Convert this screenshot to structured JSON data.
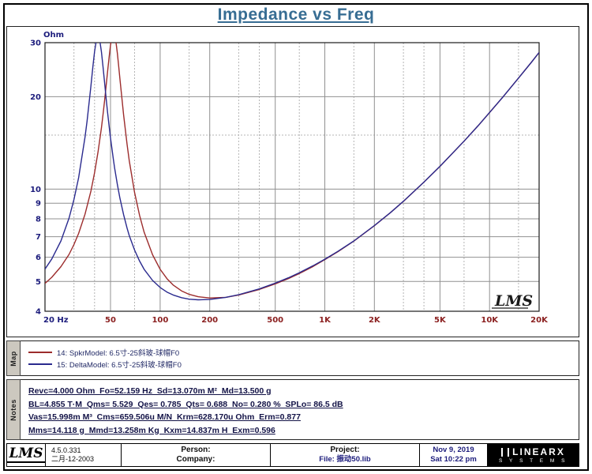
{
  "title": "Impedance vs Freq",
  "chart_data": {
    "type": "line",
    "title": "Impedance vs Freq",
    "watermark": "LMS",
    "x_axis": {
      "label": "Hz",
      "scale": "log",
      "min": 20,
      "max": 20000,
      "major_ticks": [
        {
          "value": 20,
          "label": "20 Hz"
        },
        {
          "value": 50,
          "label": "50"
        },
        {
          "value": 100,
          "label": "100"
        },
        {
          "value": 200,
          "label": "200"
        },
        {
          "value": 500,
          "label": "500"
        },
        {
          "value": 1000,
          "label": "1K"
        },
        {
          "value": 2000,
          "label": "2K"
        },
        {
          "value": 5000,
          "label": "5K"
        },
        {
          "value": 10000,
          "label": "10K"
        },
        {
          "value": 20000,
          "label": "20K"
        }
      ],
      "minor_gridlines": [
        30,
        40,
        70,
        150,
        300,
        400,
        700,
        1500,
        3000,
        4000,
        7000,
        15000
      ]
    },
    "y_axis": {
      "label": "Ohm",
      "scale": "log",
      "min": 4,
      "max": 30,
      "major_ticks": [
        {
          "value": 30,
          "label": "30"
        },
        {
          "value": 20,
          "label": "20"
        },
        {
          "value": 10,
          "label": "10"
        },
        {
          "value": 9,
          "label": "9"
        },
        {
          "value": 8,
          "label": "8"
        },
        {
          "value": 7,
          "label": "7"
        },
        {
          "value": 6,
          "label": "6"
        },
        {
          "value": 5,
          "label": "5"
        },
        {
          "value": 4,
          "label": "4"
        }
      ],
      "minor_gridlines": [
        15
      ]
    },
    "series": [
      {
        "name": "14: SpkrModel: 6.5寸-25斜玻-球帽F0",
        "color": "#9c2c2c",
        "points": [
          [
            20,
            4.93
          ],
          [
            22,
            5.16
          ],
          [
            25,
            5.59
          ],
          [
            28,
            6.13
          ],
          [
            30,
            6.6
          ],
          [
            32,
            7.17
          ],
          [
            35,
            8.28
          ],
          [
            38,
            9.86
          ],
          [
            40,
            11.31
          ],
          [
            42,
            13.22
          ],
          [
            44,
            15.83
          ],
          [
            45,
            17.47
          ],
          [
            46,
            19.41
          ],
          [
            47,
            21.64
          ],
          [
            48,
            24.17
          ],
          [
            49,
            26.86
          ],
          [
            50,
            29.44
          ],
          [
            51,
            31.4
          ],
          [
            52,
            32.3
          ],
          [
            53,
            31.7
          ],
          [
            54,
            30.0
          ],
          [
            55,
            27.7
          ],
          [
            56,
            25.23
          ],
          [
            57,
            22.9
          ],
          [
            60,
            17.44
          ],
          [
            63,
            13.98
          ],
          [
            65,
            12.35
          ],
          [
            70,
            9.75
          ],
          [
            75,
            8.22
          ],
          [
            80,
            7.24
          ],
          [
            90,
            6.11
          ],
          [
            100,
            5.48
          ],
          [
            110,
            5.11
          ],
          [
            120,
            4.87
          ],
          [
            135,
            4.66
          ],
          [
            150,
            4.54
          ],
          [
            170,
            4.46
          ],
          [
            200,
            4.42
          ],
          [
            250,
            4.44
          ],
          [
            300,
            4.52
          ],
          [
            400,
            4.71
          ],
          [
            500,
            4.91
          ],
          [
            600,
            5.11
          ],
          [
            700,
            5.31
          ],
          [
            850,
            5.6
          ],
          [
            1000,
            5.89
          ],
          [
            1200,
            6.25
          ],
          [
            1500,
            6.77
          ],
          [
            2000,
            7.6
          ],
          [
            2500,
            8.38
          ],
          [
            3000,
            9.12
          ],
          [
            4000,
            10.54
          ],
          [
            5000,
            11.86
          ],
          [
            7000,
            14.33
          ],
          [
            8500,
            16.06
          ],
          [
            10000,
            17.76
          ],
          [
            12000,
            19.9
          ],
          [
            15000,
            23.0
          ],
          [
            18000,
            25.95
          ],
          [
            20000,
            27.87
          ]
        ]
      },
      {
        "name": "15: DeltaModel: 6.5寸-25斜玻-球帽F0",
        "color": "#2a2a8e",
        "points": [
          [
            20,
            5.49
          ],
          [
            22,
            5.92
          ],
          [
            25,
            6.78
          ],
          [
            28,
            8.05
          ],
          [
            30,
            9.25
          ],
          [
            32,
            10.89
          ],
          [
            35,
            14.77
          ],
          [
            36,
            16.65
          ],
          [
            37,
            18.94
          ],
          [
            38,
            21.7
          ],
          [
            39,
            24.82
          ],
          [
            40,
            28.06
          ],
          [
            41,
            30.6
          ],
          [
            42,
            31.6
          ],
          [
            43,
            30.5
          ],
          [
            44,
            28.0
          ],
          [
            45,
            25.05
          ],
          [
            46,
            22.24
          ],
          [
            47,
            19.8
          ],
          [
            48,
            17.77
          ],
          [
            49,
            16.07
          ],
          [
            50,
            14.67
          ],
          [
            52,
            12.52
          ],
          [
            53,
            11.67
          ],
          [
            55,
            10.35
          ],
          [
            57,
            9.35
          ],
          [
            60,
            8.25
          ],
          [
            63,
            7.46
          ],
          [
            65,
            7.05
          ],
          [
            70,
            6.33
          ],
          [
            75,
            5.83
          ],
          [
            80,
            5.48
          ],
          [
            90,
            5.04
          ],
          [
            100,
            4.78
          ],
          [
            110,
            4.62
          ],
          [
            120,
            4.52
          ],
          [
            135,
            4.43
          ],
          [
            150,
            4.38
          ],
          [
            170,
            4.36
          ],
          [
            200,
            4.37
          ],
          [
            250,
            4.44
          ],
          [
            300,
            4.53
          ],
          [
            400,
            4.73
          ],
          [
            500,
            4.94
          ],
          [
            600,
            5.14
          ],
          [
            700,
            5.34
          ],
          [
            850,
            5.63
          ],
          [
            1000,
            5.91
          ],
          [
            1200,
            6.27
          ],
          [
            1500,
            6.78
          ],
          [
            2000,
            7.61
          ],
          [
            2500,
            8.38
          ],
          [
            3000,
            9.13
          ],
          [
            4000,
            10.54
          ],
          [
            5000,
            11.87
          ],
          [
            7000,
            14.33
          ],
          [
            8500,
            16.06
          ],
          [
            10000,
            17.77
          ],
          [
            12000,
            19.9
          ],
          [
            15000,
            23.0
          ],
          [
            18000,
            25.95
          ],
          [
            20000,
            27.88
          ]
        ]
      }
    ]
  },
  "map_panel": {
    "tab": "Map"
  },
  "notes_panel": {
    "tab": "Notes",
    "lines": [
      "Revc=4.000 Ohm  Fo=52.159 Hz  Sd=13.070m M²  Md=13.500 g",
      "BL=4.855 T·M  Qms= 5.529  Qes= 0.785  Qts= 0.688  No= 0.280 %  SPLo= 86.5 dB",
      "Vas=15.998m M³  Cms=659.506u M/N  Krm=628.170u Ohm  Erm=0.877",
      "Mms=14.118 g  Mmd=13.258m Kg  Kxm=14.837m H  Exm=0.596"
    ]
  },
  "status_bar": {
    "lms_logo": "LMS",
    "version": "4.5.0.331",
    "build_date": "二月-12-2003",
    "person_label": "Person:",
    "company_label": "Company:",
    "project_label": "Project:",
    "file_label": "File: 振动50.lib",
    "date": "Nov  9, 2019",
    "time": "Sat 10:22 pm",
    "brand_line1": "LINEARX",
    "brand_line2": "S Y S T E M S"
  }
}
